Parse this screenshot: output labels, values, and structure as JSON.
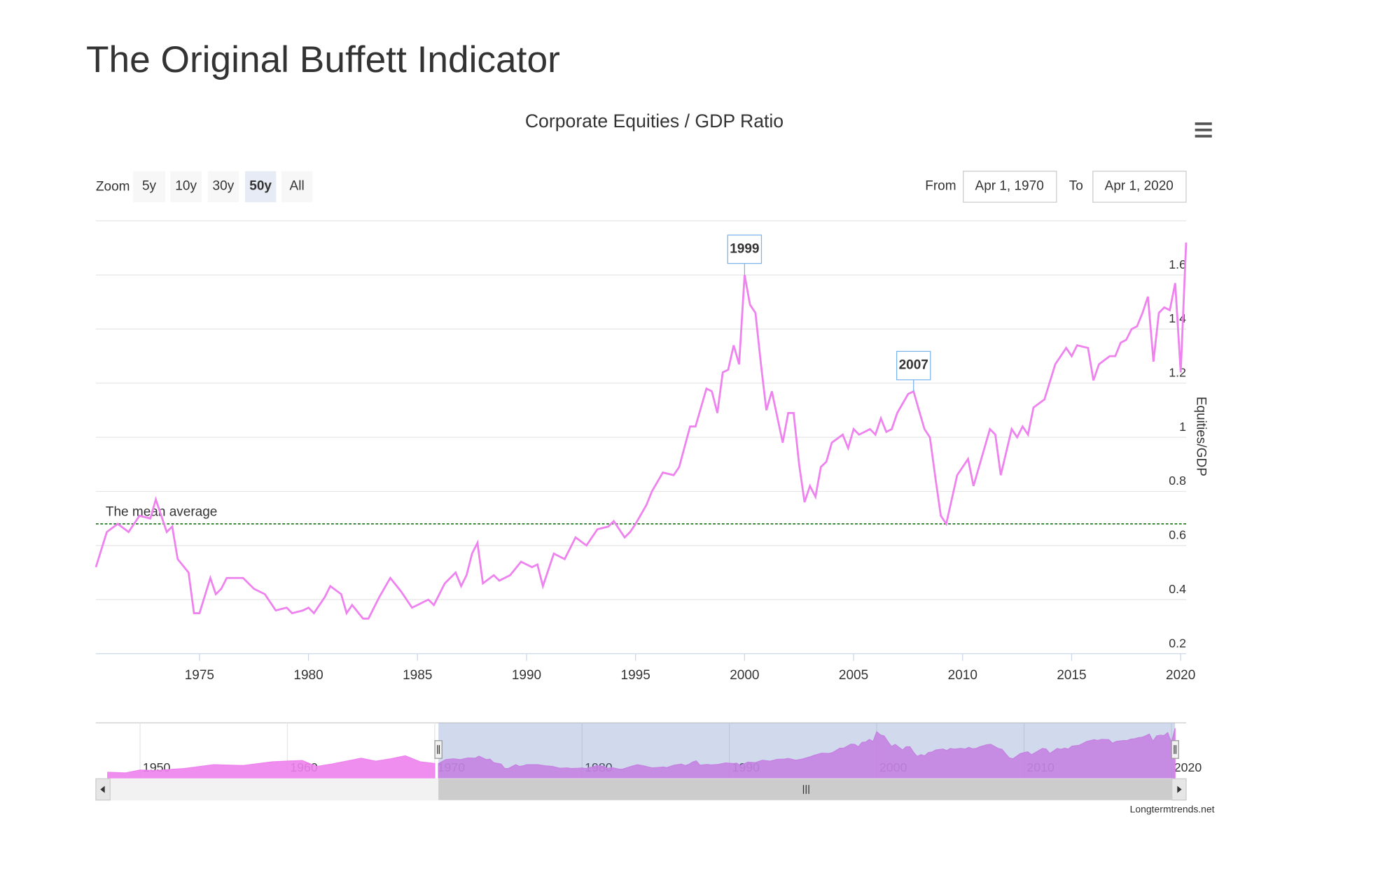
{
  "title": "The Original Buffett Indicator",
  "toolbar": {
    "zoom_label": "Zoom",
    "buttons": [
      "5y",
      "10y",
      "30y",
      "50y",
      "All"
    ],
    "active_button": 3,
    "from_label": "From",
    "from": "Apr 1, 1970",
    "to_label": "To",
    "to": "Apr 1, 2020"
  },
  "credit": "Longtermtrends.net",
  "chart_data": {
    "type": "line",
    "title": "Corporate Equities / GDP Ratio",
    "y_label": "Equities/GDP",
    "color": "#ee82ee",
    "grid": true,
    "xlim": [
      1970.25,
      2020.25
    ],
    "ylim": [
      0.2,
      1.8
    ],
    "xticks": [
      1975,
      1980,
      1985,
      1990,
      1995,
      2000,
      2005,
      2010,
      2015,
      2020
    ],
    "yticks": [
      0.2,
      0.4,
      0.6,
      0.8,
      1,
      1.2,
      1.4,
      1.6
    ],
    "x": [
      1970.25,
      1970.75,
      1971.25,
      1971.75,
      1972.25,
      1972.75,
      1973.0,
      1973.5,
      1973.75,
      1974.0,
      1974.5,
      1974.75,
      1975.0,
      1975.5,
      1975.75,
      1976.0,
      1976.25,
      1977.0,
      1977.5,
      1978.0,
      1978.5,
      1979.0,
      1979.25,
      1979.75,
      1980.0,
      1980.25,
      1980.75,
      1981.0,
      1981.5,
      1981.75,
      1982.0,
      1982.5,
      1982.75,
      1983.25,
      1983.75,
      1984.25,
      1984.75,
      1985.25,
      1985.5,
      1985.75,
      1986.25,
      1986.75,
      1987.0,
      1987.25,
      1987.5,
      1987.75,
      1988.0,
      1988.5,
      1988.75,
      1989.25,
      1989.75,
      1990.25,
      1990.5,
      1990.75,
      1991.25,
      1991.75,
      1992.25,
      1992.75,
      1993.25,
      1993.75,
      1994.0,
      1994.5,
      1994.75,
      1995.0,
      1995.5,
      1995.75,
      1996.25,
      1996.75,
      1997.0,
      1997.5,
      1997.75,
      1998.25,
      1998.5,
      1998.75,
      1999.0,
      1999.25,
      1999.5,
      1999.75,
      2000.0,
      2000.25,
      2000.5,
      2000.75,
      2001.0,
      2001.25,
      2001.75,
      2002.0,
      2002.25,
      2002.5,
      2002.75,
      2003.0,
      2003.25,
      2003.5,
      2003.75,
      2004.0,
      2004.5,
      2004.75,
      2005.0,
      2005.25,
      2005.75,
      2006.0,
      2006.25,
      2006.5,
      2006.75,
      2007.0,
      2007.5,
      2007.75,
      2008.0,
      2008.25,
      2008.5,
      2008.75,
      2009.0,
      2009.25,
      2009.75,
      2010.0,
      2010.25,
      2010.5,
      2011.0,
      2011.25,
      2011.5,
      2011.75,
      2012.25,
      2012.5,
      2012.75,
      2013.0,
      2013.25,
      2013.75,
      2014.25,
      2014.75,
      2015.0,
      2015.25,
      2015.75,
      2016.0,
      2016.25,
      2016.75,
      2017.0,
      2017.25,
      2017.5,
      2017.75,
      2018.0,
      2018.25,
      2018.5,
      2018.75,
      2019.0,
      2019.25,
      2019.5,
      2019.75,
      2020.0,
      2020.25
    ],
    "values": [
      0.52,
      0.65,
      0.68,
      0.65,
      0.71,
      0.7,
      0.77,
      0.65,
      0.67,
      0.55,
      0.5,
      0.35,
      0.35,
      0.48,
      0.42,
      0.44,
      0.48,
      0.48,
      0.44,
      0.42,
      0.36,
      0.37,
      0.35,
      0.36,
      0.37,
      0.35,
      0.41,
      0.45,
      0.42,
      0.35,
      0.38,
      0.33,
      0.33,
      0.41,
      0.48,
      0.43,
      0.37,
      0.39,
      0.4,
      0.38,
      0.46,
      0.5,
      0.45,
      0.49,
      0.57,
      0.61,
      0.46,
      0.49,
      0.47,
      0.49,
      0.54,
      0.52,
      0.53,
      0.45,
      0.57,
      0.55,
      0.63,
      0.6,
      0.66,
      0.67,
      0.69,
      0.63,
      0.65,
      0.68,
      0.75,
      0.8,
      0.87,
      0.86,
      0.89,
      1.04,
      1.04,
      1.18,
      1.17,
      1.09,
      1.24,
      1.25,
      1.34,
      1.27,
      1.6,
      1.49,
      1.46,
      1.27,
      1.1,
      1.17,
      0.98,
      1.09,
      1.09,
      0.9,
      0.76,
      0.82,
      0.78,
      0.89,
      0.91,
      0.98,
      1.01,
      0.96,
      1.03,
      1.01,
      1.03,
      1.01,
      1.07,
      1.02,
      1.03,
      1.09,
      1.16,
      1.17,
      1.1,
      1.03,
      1.0,
      0.85,
      0.71,
      0.68,
      0.86,
      0.89,
      0.92,
      0.82,
      0.96,
      1.03,
      1.01,
      0.86,
      1.03,
      1.0,
      1.04,
      1.01,
      1.11,
      1.14,
      1.27,
      1.33,
      1.3,
      1.34,
      1.33,
      1.21,
      1.27,
      1.3,
      1.3,
      1.35,
      1.36,
      1.4,
      1.41,
      1.46,
      1.52,
      1.28,
      1.46,
      1.48,
      1.47,
      1.57,
      1.24,
      1.72
    ],
    "mean_line": {
      "label": "The mean average",
      "value": 0.68
    },
    "annotations": [
      {
        "label": "1999",
        "x": 2000.0,
        "y": 1.6
      },
      {
        "label": "2007",
        "x": 2007.75,
        "y": 1.17
      }
    ],
    "navigator": {
      "xlim": [
        1947,
        2021
      ],
      "ylim": [
        0,
        1.9
      ],
      "xticks": [
        1950,
        1960,
        1970,
        1980,
        1990,
        2000,
        2010,
        2020
      ],
      "x": [
        1947.8,
        1949,
        1950,
        1951,
        1953,
        1955,
        1957,
        1959,
        1960,
        1961,
        1962,
        1963,
        1965,
        1966,
        1967,
        1968,
        1969,
        1970
      ],
      "values": [
        0.22,
        0.2,
        0.3,
        0.28,
        0.35,
        0.48,
        0.45,
        0.58,
        0.6,
        0.62,
        0.42,
        0.5,
        0.7,
        0.6,
        0.68,
        0.78,
        0.58,
        0.52
      ]
    }
  }
}
